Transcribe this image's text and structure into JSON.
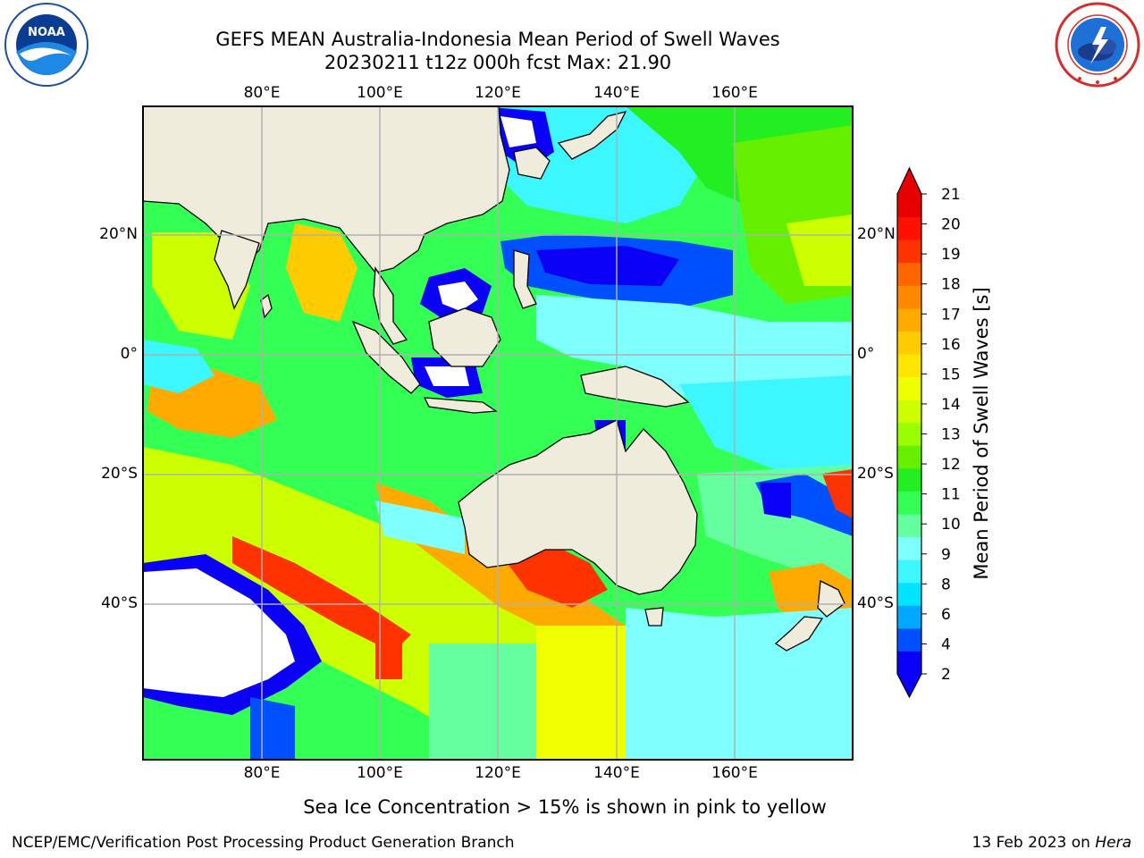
{
  "header": {
    "title_line1": "GEFS MEAN Australia-Indonesia Mean Period of Swell Waves",
    "title_line2": "20230211 t12z 000h fcst   Max: 21.90"
  },
  "logos": {
    "left": {
      "name": "noaa-logo",
      "text": "NOAA",
      "ring_text": "NATIONAL OCEANIC AND ATMOSPHERIC ADMINISTRATION · U.S. DEPARTMENT OF COMMERCE"
    },
    "right": {
      "name": "nws-logo",
      "ring_text": "NATIONAL WEATHER SERVICE"
    }
  },
  "map": {
    "lon_ticks_top": [
      "80°E",
      "100°E",
      "120°E",
      "140°E",
      "160°E"
    ],
    "lon_ticks_bottom": [
      "80°E",
      "100°E",
      "120°E",
      "140°E",
      "160°E"
    ],
    "lat_ticks_left": [
      "20°N",
      "0°",
      "20°S",
      "40°S"
    ],
    "lat_ticks_right": [
      "20°N",
      "0°",
      "20°S",
      "40°S"
    ],
    "colors": {
      "land": "#efecdc",
      "grid": "#b0b0b0",
      "ice_free_white": "#ffffff"
    }
  },
  "colorbar": {
    "label": "Mean Period of Swell Waves [s]",
    "ticks": [
      "2",
      "4",
      "6",
      "8",
      "9",
      "10",
      "11",
      "12",
      "13",
      "14",
      "15",
      "16",
      "17",
      "18",
      "19",
      "20",
      "21"
    ],
    "colors": [
      "#0a00f5",
      "#0050ff",
      "#00a8ff",
      "#00e5ff",
      "#3cf7ff",
      "#80ffff",
      "#66ffa0",
      "#33ff55",
      "#22ee22",
      "#66f000",
      "#99ff00",
      "#ccff00",
      "#f0ff00",
      "#ffe600",
      "#ffcc00",
      "#ffaa00",
      "#ff8800",
      "#ff6600",
      "#ff3300",
      "#ff1100",
      "#e60000"
    ]
  },
  "footer": {
    "note": "Sea Ice Concentration > 15% is shown in pink to yellow",
    "left": "NCEP/EMC/Verification Post Processing Product Generation Branch",
    "right_prefix": "13 Feb 2023 on ",
    "right_host": "Hera"
  }
}
